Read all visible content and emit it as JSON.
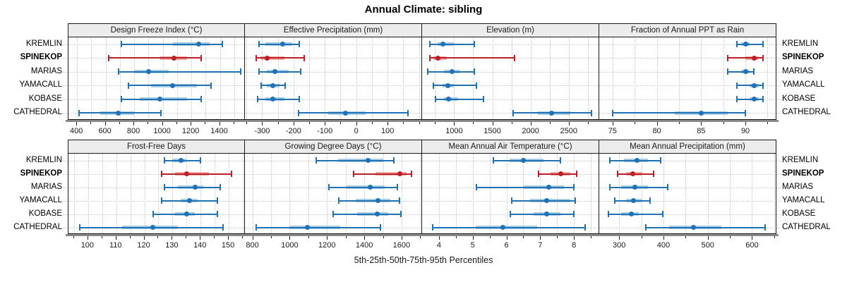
{
  "chart_data": {
    "type": "errorbar-trellis",
    "title": "Annual Climate: sibling",
    "xlabel": "5th-25th-50th-75th-95th Percentiles",
    "percentiles": [
      5,
      25,
      50,
      75,
      95
    ],
    "stations": [
      "KREMLIN",
      "SPINEKOP",
      "MARIAS",
      "YAMACALL",
      "KOBASE",
      "CATHEDRAL"
    ],
    "highlight_station": "SPINEKOP",
    "grid": true,
    "legend_position": "none",
    "colors": {
      "normal_line": "#2171b5",
      "normal_band": "#a8cee6",
      "highlight_line": "#bb2026",
      "highlight_band": "#f2a7a4",
      "strip_bg": "#ececec",
      "panel_border": "#1a1a1a",
      "grid_line": "#c8c8c8",
      "axis_bar": "#8a8a8a",
      "tick": "#1a1a1a"
    },
    "panels": [
      {
        "title": "Design Freeze Index (°C)",
        "row": 0,
        "col": 0,
        "xlim": [
          340,
          1580
        ],
        "major_ticks": [
          400,
          600,
          800,
          1000,
          1200,
          1400
        ],
        "major_labels": [
          "400",
          "600",
          "800",
          "1000",
          "1200",
          "1400"
        ],
        "minor_ticks": [
          500,
          700,
          900,
          1100,
          1300,
          1500
        ],
        "series": [
          [
            710,
            1070,
            1250,
            1330,
            1420
          ],
          [
            620,
            980,
            1080,
            1170,
            1270
          ],
          [
            690,
            800,
            900,
            1040,
            1550
          ],
          [
            755,
            920,
            1070,
            1240,
            1340
          ],
          [
            710,
            840,
            980,
            1170,
            1270
          ],
          [
            410,
            560,
            690,
            800,
            990
          ]
        ]
      },
      {
        "title": "Effective Precipitation (mm)",
        "row": 0,
        "col": 1,
        "xlim": [
          -355,
          210
        ],
        "major_ticks": [
          -300,
          -200,
          -100,
          0,
          100
        ],
        "major_labels": [
          "-300",
          "-200",
          "-100",
          "0",
          "100"
        ],
        "minor_ticks": [
          -350,
          -250,
          -150,
          -50,
          50,
          150,
          200
        ],
        "series": [
          [
            -310,
            -290,
            -235,
            -205,
            -180
          ],
          [
            -320,
            -305,
            -285,
            -230,
            -165
          ],
          [
            -310,
            -285,
            -260,
            -215,
            -175
          ],
          [
            -305,
            -285,
            -265,
            -245,
            -225
          ],
          [
            -315,
            -290,
            -265,
            -230,
            -180
          ],
          [
            -185,
            -90,
            -35,
            30,
            165
          ]
        ]
      },
      {
        "title": "Elevation (m)",
        "row": 0,
        "col": 2,
        "xlim": [
          580,
          2900
        ],
        "major_ticks": [
          1000,
          1500,
          2000,
          2500
        ],
        "major_labels": [
          "1000",
          "1500",
          "2000",
          "2500"
        ],
        "minor_ticks": [
          750,
          1250,
          1750,
          2250,
          2750
        ],
        "series": [
          [
            680,
            780,
            850,
            1000,
            1270
          ],
          [
            680,
            730,
            790,
            900,
            1800
          ],
          [
            650,
            870,
            970,
            1080,
            1270
          ],
          [
            720,
            850,
            920,
            1000,
            1300
          ],
          [
            750,
            870,
            930,
            1050,
            1390
          ],
          [
            1770,
            2100,
            2280,
            2520,
            2800
          ]
        ]
      },
      {
        "title": "Fraction of Annual PPT as Rain",
        "row": 0,
        "col": 3,
        "xlim": [
          73.5,
          93.5
        ],
        "major_ticks": [
          75,
          80,
          85,
          90
        ],
        "major_labels": [
          "75",
          "80",
          "85",
          "90"
        ],
        "minor_ticks": [
          77.5,
          82.5,
          87.5,
          92.5
        ],
        "series": [
          [
            89,
            89.5,
            90,
            90.5,
            92
          ],
          [
            88,
            90,
            91,
            91.5,
            92
          ],
          [
            88,
            89.5,
            90,
            90.5,
            91
          ],
          [
            89,
            90.5,
            91,
            91.5,
            92
          ],
          [
            89,
            90.5,
            91,
            91.5,
            92
          ],
          [
            75,
            82,
            85,
            88,
            90
          ]
        ]
      },
      {
        "title": "Frost-Free Days",
        "row": 1,
        "col": 0,
        "xlim": [
          93,
          156
        ],
        "major_ticks": [
          100,
          110,
          120,
          130,
          140,
          150
        ],
        "major_labels": [
          "100",
          "110",
          "120",
          "130",
          "140",
          "150"
        ],
        "minor_ticks": [
          95,
          105,
          115,
          125,
          135,
          145,
          155
        ],
        "series": [
          [
            127,
            130,
            133,
            135,
            140
          ],
          [
            126,
            131,
            135,
            143,
            151
          ],
          [
            127,
            132,
            138,
            141,
            147
          ],
          [
            126,
            133,
            136,
            139,
            146
          ],
          [
            123,
            131,
            135,
            138,
            146
          ],
          [
            97,
            112,
            123,
            132,
            148
          ]
        ]
      },
      {
        "title": "Growing Degree Days (°C)",
        "row": 1,
        "col": 1,
        "xlim": [
          760,
          1710
        ],
        "major_ticks": [
          800,
          1000,
          1200,
          1400,
          1600
        ],
        "major_labels": [
          "800",
          "1000",
          "1200",
          "1400",
          "1600"
        ],
        "minor_ticks": [
          900,
          1100,
          1300,
          1500,
          1700
        ],
        "series": [
          [
            1140,
            1260,
            1420,
            1500,
            1560
          ],
          [
            1340,
            1460,
            1590,
            1625,
            1655
          ],
          [
            1210,
            1300,
            1430,
            1510,
            1580
          ],
          [
            1260,
            1355,
            1475,
            1540,
            1590
          ],
          [
            1230,
            1360,
            1470,
            1530,
            1600
          ],
          [
            820,
            1000,
            1095,
            1270,
            1490
          ]
        ]
      },
      {
        "title": "Mean Annual Air Temperature (°C)",
        "row": 1,
        "col": 2,
        "xlim": [
          3.5,
          8.75
        ],
        "major_ticks": [
          4,
          5,
          6,
          7,
          8
        ],
        "major_labels": [
          "4",
          "5",
          "6",
          "7",
          "8"
        ],
        "minor_ticks": [
          4.5,
          5.5,
          6.5,
          7.5,
          8.5
        ],
        "series": [
          [
            5.6,
            6.1,
            6.5,
            7.1,
            7.6
          ],
          [
            6.95,
            7.3,
            7.6,
            7.9,
            8.1
          ],
          [
            5.1,
            6.5,
            7.25,
            7.7,
            8.0
          ],
          [
            6.15,
            6.7,
            7.2,
            7.9,
            8.05
          ],
          [
            6.1,
            6.8,
            7.2,
            7.6,
            8.0
          ],
          [
            3.8,
            5.1,
            5.9,
            6.9,
            8.35
          ]
        ]
      },
      {
        "title": "Mean Annual Precipitation (mm)",
        "row": 1,
        "col": 3,
        "xlim": [
          255,
          655
        ],
        "major_ticks": [
          300,
          400,
          500,
          600
        ],
        "major_labels": [
          "300",
          "400",
          "500",
          "600"
        ],
        "minor_ticks": [
          350,
          450,
          550,
          650
        ],
        "series": [
          [
            278,
            310,
            340,
            365,
            395
          ],
          [
            295,
            315,
            330,
            350,
            378
          ],
          [
            278,
            305,
            335,
            365,
            410
          ],
          [
            290,
            315,
            333,
            350,
            370
          ],
          [
            275,
            305,
            328,
            345,
            400
          ],
          [
            360,
            412,
            468,
            530,
            630
          ]
        ]
      }
    ]
  }
}
